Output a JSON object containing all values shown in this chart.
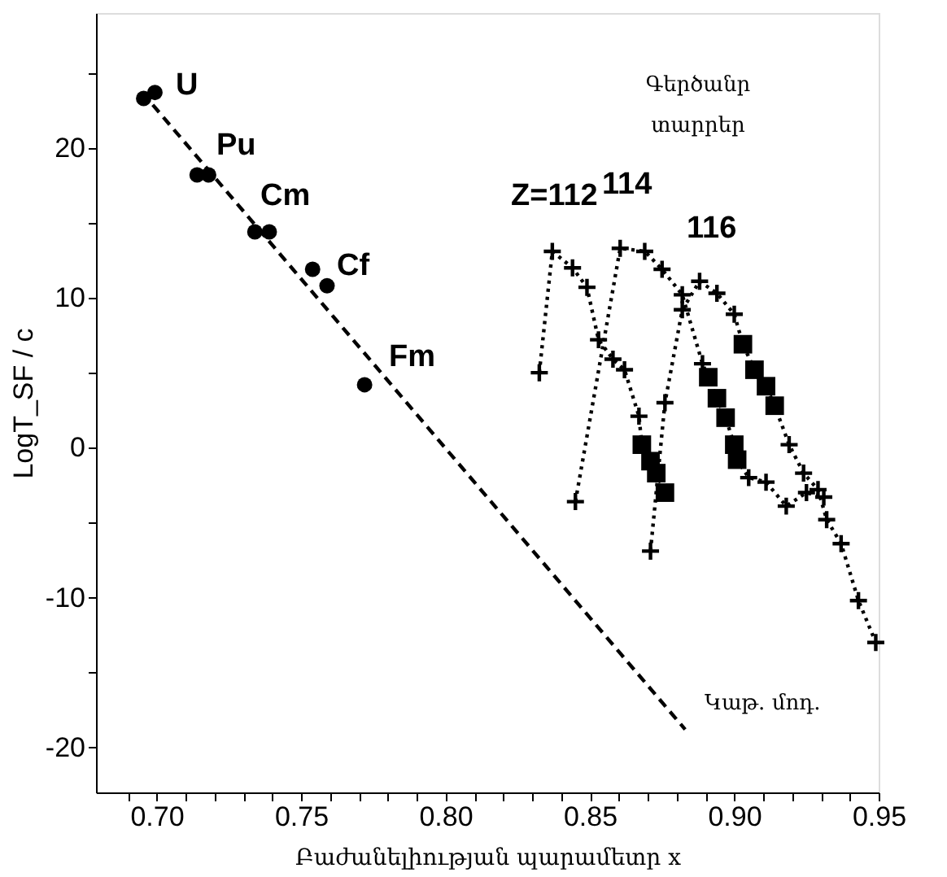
{
  "chart_data": {
    "type": "scatter",
    "xlabel": "Բաժանելիության պարամետր     x",
    "ylabel": "LogT_SF / c",
    "xlim": [
      0.679,
      0.95
    ],
    "ylim": [
      -23,
      29
    ],
    "xticks": [
      {
        "value": 0.69,
        "label": null
      },
      {
        "value": 0.7,
        "label": "0.70"
      },
      {
        "value": 0.71,
        "label": null
      },
      {
        "value": 0.72,
        "label": null
      },
      {
        "value": 0.73,
        "label": null
      },
      {
        "value": 0.74,
        "label": null
      },
      {
        "value": 0.75,
        "label": "0.75"
      },
      {
        "value": 0.76,
        "label": null
      },
      {
        "value": 0.77,
        "label": null
      },
      {
        "value": 0.78,
        "label": null
      },
      {
        "value": 0.79,
        "label": null
      },
      {
        "value": 0.8,
        "label": "0.80"
      },
      {
        "value": 0.81,
        "label": null
      },
      {
        "value": 0.82,
        "label": null
      },
      {
        "value": 0.83,
        "label": null
      },
      {
        "value": 0.84,
        "label": null
      },
      {
        "value": 0.85,
        "label": "0.85"
      },
      {
        "value": 0.86,
        "label": null
      },
      {
        "value": 0.87,
        "label": null
      },
      {
        "value": 0.88,
        "label": null
      },
      {
        "value": 0.89,
        "label": null
      },
      {
        "value": 0.9,
        "label": "0.90"
      },
      {
        "value": 0.91,
        "label": null
      },
      {
        "value": 0.92,
        "label": null
      },
      {
        "value": 0.93,
        "label": null
      },
      {
        "value": 0.94,
        "label": null
      },
      {
        "value": 0.95,
        "label": "0.95"
      }
    ],
    "yticks": [
      -20,
      {
        "value": -15,
        "label": null
      },
      -10,
      {
        "value": -5,
        "label": null
      },
      0,
      {
        "value": 5,
        "label": null
      },
      10,
      {
        "value": 15,
        "label": null
      },
      20,
      {
        "value": 25,
        "label": null
      }
    ],
    "grid": false,
    "series": [
      {
        "type": "line",
        "line_style": "dashed",
        "marker": "none",
        "color": "#000000",
        "x": [
          0.695,
          0.883
        ],
        "values": [
          23.7,
          -18.8
        ]
      },
      {
        "type": "scatter",
        "marker": "circle",
        "color": "#000000",
        "x": [
          0.6955,
          0.6994,
          0.714,
          0.718,
          0.734,
          0.739,
          0.754,
          0.759,
          0.772
        ],
        "values": [
          23.3,
          23.7,
          18.2,
          18.2,
          14.4,
          14.4,
          11.9,
          10.8,
          4.2
        ]
      },
      {
        "type": "line",
        "line_style": "dotted",
        "marker": "none",
        "color": "#000000",
        "x": [
          0.8325,
          0.837,
          0.844,
          0.849,
          0.853,
          0.858,
          0.862,
          0.867,
          0.868,
          0.871,
          0.873,
          0.876
        ],
        "values": [
          5.0,
          13.1,
          12.0,
          10.7,
          7.2,
          5.9,
          5.2,
          2.1,
          0.2,
          -0.9,
          -1.7,
          -3.0
        ]
      },
      {
        "type": "line",
        "line_style": "dotted",
        "marker": "none",
        "color": "#000000",
        "x": [
          0.845,
          0.8605,
          0.869,
          0.875,
          0.882,
          0.889,
          0.891,
          0.894,
          0.897,
          0.9,
          0.901,
          0.905,
          0.911,
          0.918,
          0.925,
          0.931
        ],
        "values": [
          -3.6,
          13.3,
          13.1,
          11.9,
          10.2,
          5.6,
          4.7,
          3.3,
          2.0,
          0.2,
          -0.8,
          -2.0,
          -2.3,
          -3.9,
          -3.0,
          -3.3
        ]
      },
      {
        "type": "line",
        "line_style": "dotted",
        "marker": "none",
        "color": "#000000",
        "x": [
          0.871,
          0.876,
          0.882,
          0.888,
          0.894,
          0.9,
          0.903,
          0.907,
          0.911,
          0.914,
          0.919,
          0.924,
          0.929,
          0.932,
          0.937,
          0.943,
          0.949
        ],
        "values": [
          -6.9,
          3.0,
          9.2,
          11.1,
          10.3,
          8.9,
          6.9,
          5.2,
          4.1,
          2.8,
          0.2,
          -1.7,
          -2.8,
          -4.8,
          -6.4,
          -10.2,
          -13.0
        ]
      },
      {
        "type": "scatter",
        "marker": "cross",
        "color": "#000000",
        "x": [
          0.8325,
          0.837,
          0.844,
          0.849,
          0.853,
          0.858,
          0.862,
          0.867,
          0.845,
          0.8605,
          0.869,
          0.875,
          0.882,
          0.889,
          0.905,
          0.911,
          0.918,
          0.925,
          0.931,
          0.871,
          0.876,
          0.882,
          0.888,
          0.894,
          0.9,
          0.919,
          0.924,
          0.929,
          0.932,
          0.937,
          0.943,
          0.949
        ],
        "values": [
          5.0,
          13.1,
          12.0,
          10.7,
          7.2,
          5.9,
          5.2,
          2.1,
          -3.6,
          13.3,
          13.1,
          11.9,
          10.2,
          5.6,
          -2.0,
          -2.3,
          -3.9,
          -3.0,
          -3.3,
          -6.9,
          3.0,
          9.2,
          11.1,
          10.3,
          8.9,
          0.2,
          -1.7,
          -2.8,
          -4.8,
          -6.4,
          -10.2,
          -13.0
        ]
      },
      {
        "type": "scatter",
        "marker": "square",
        "color": "#000000",
        "x": [
          0.868,
          0.871,
          0.873,
          0.876,
          0.891,
          0.894,
          0.897,
          0.9,
          0.901,
          0.903,
          0.907,
          0.911,
          0.914
        ],
        "values": [
          0.2,
          -0.9,
          -1.7,
          -3.0,
          4.7,
          3.3,
          2.0,
          0.2,
          -0.8,
          6.9,
          5.2,
          4.1,
          2.8
        ]
      }
    ],
    "annotations": [
      "U",
      "Pu",
      "Cm",
      "Cf",
      "Fm",
      "Z=112",
      "114",
      "116",
      "Կաթ. մոդ.",
      "Գերծանր տարրեր"
    ]
  }
}
